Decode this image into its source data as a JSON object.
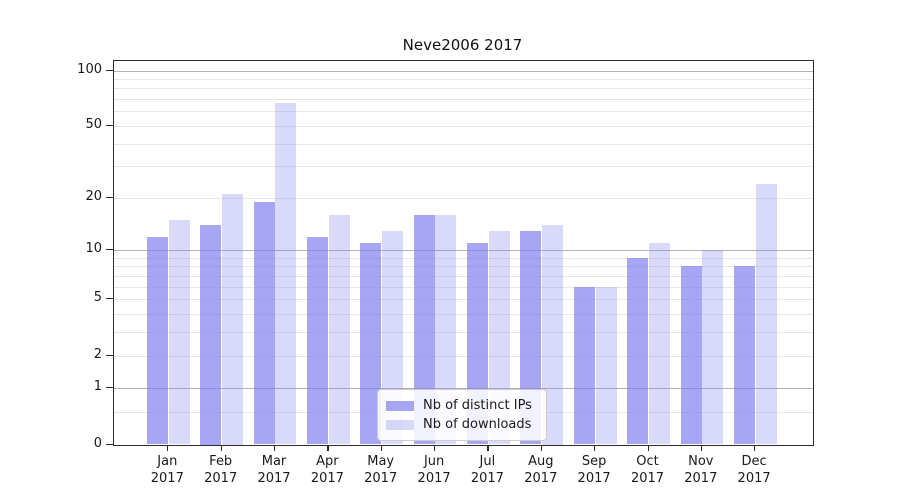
{
  "chart_data": {
    "type": "bar",
    "title": "Neve2006 2017",
    "categories": [
      "Jan 2017",
      "Feb 2017",
      "Mar 2017",
      "Apr 2017",
      "May 2017",
      "Jun 2017",
      "Jul 2017",
      "Aug 2017",
      "Sep 2017",
      "Oct 2017",
      "Nov 2017",
      "Dec 2017"
    ],
    "x_tick_months": [
      "Jan",
      "Feb",
      "Mar",
      "Apr",
      "May",
      "Jun",
      "Jul",
      "Aug",
      "Sep",
      "Oct",
      "Nov",
      "Dec"
    ],
    "x_tick_year": "2017",
    "series": [
      {
        "name": "Nb of distinct IPs",
        "values": [
          12,
          14,
          19,
          12,
          11,
          16,
          11,
          13,
          6,
          9,
          8,
          8
        ],
        "color": "rgba(128,128,240,0.7)"
      },
      {
        "name": "Nb of downloads",
        "values": [
          15,
          21,
          67,
          16,
          13,
          16,
          13,
          14,
          6,
          11,
          10,
          24
        ],
        "color": "rgba(128,128,240,0.3)"
      }
    ],
    "y_axis": {
      "scale": "log1p",
      "ticks": [
        100,
        50,
        20,
        10,
        5,
        2,
        1,
        0
      ],
      "minor_ticks": [
        90,
        80,
        70,
        60,
        40,
        30,
        9,
        8,
        7,
        6,
        4,
        3,
        0.5
      ],
      "ylim": [
        0,
        110
      ]
    },
    "legend": {
      "position": "lower center",
      "entries": [
        "Nb of distinct IPs",
        "Nb of downloads"
      ]
    },
    "grid": true
  },
  "colors": {
    "bar_base": "#8080f0",
    "grid_major": "#b3b3b3",
    "grid_minor": "#e8e8e8",
    "spine": "#2b2b2b",
    "text": "#1a1a1a",
    "legend_border": "#cccccc",
    "legend_bg": "rgba(255,255,255,0.85)"
  }
}
